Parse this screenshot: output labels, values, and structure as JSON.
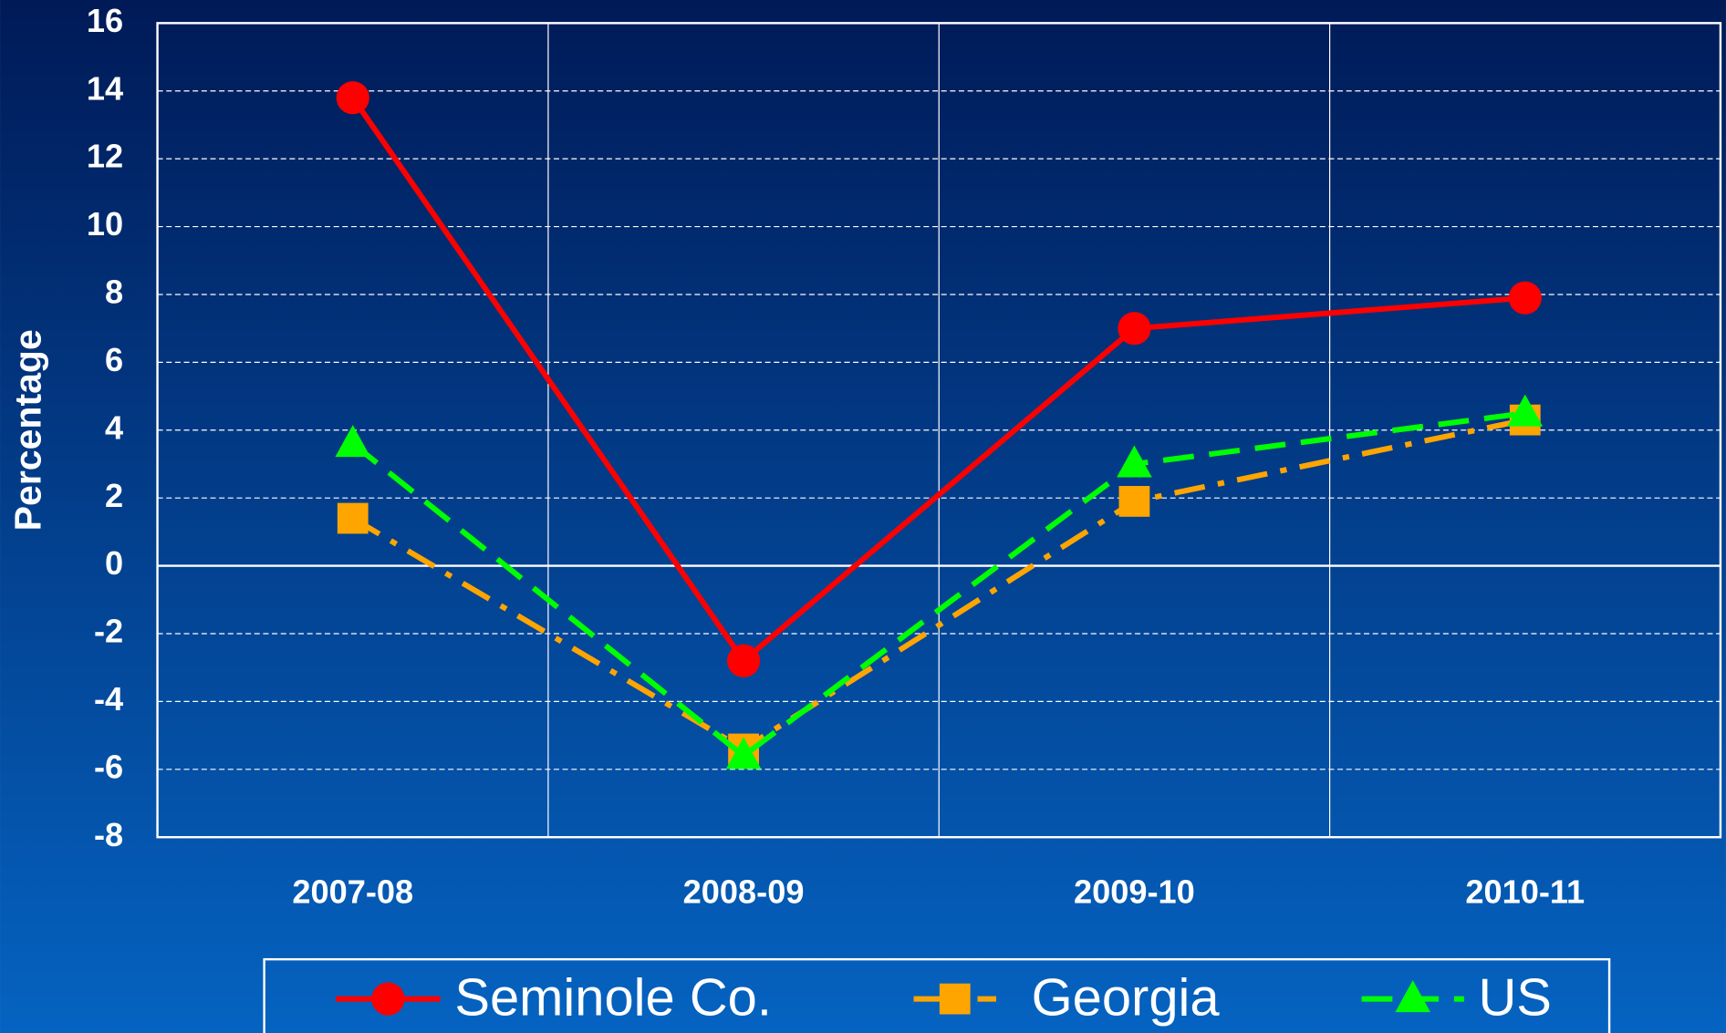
{
  "chart_data": {
    "type": "line",
    "y_label": "Percentage",
    "categories": [
      "2007-08",
      "2008-09",
      "2009-10",
      "2010-11"
    ],
    "series": [
      {
        "name": "Seminole Co.",
        "color": "#ff0000",
        "line_style": "solid",
        "marker": "circle",
        "values": [
          13.8,
          -2.8,
          7.0,
          7.9
        ]
      },
      {
        "name": "Georgia",
        "color": "#ffa500",
        "line_style": "dashdot",
        "marker": "square",
        "values": [
          1.4,
          -5.4,
          1.9,
          4.3
        ]
      },
      {
        "name": "US",
        "color": "#00ff00",
        "line_style": "dashed",
        "marker": "triangle",
        "values": [
          3.6,
          -5.6,
          3.0,
          4.5
        ]
      }
    ],
    "ylim": [
      -8,
      16
    ],
    "yticks": [
      -8,
      -6,
      -4,
      -2,
      0,
      2,
      4,
      6,
      8,
      10,
      12,
      14,
      16
    ],
    "grid": true,
    "legend": "bottom"
  }
}
